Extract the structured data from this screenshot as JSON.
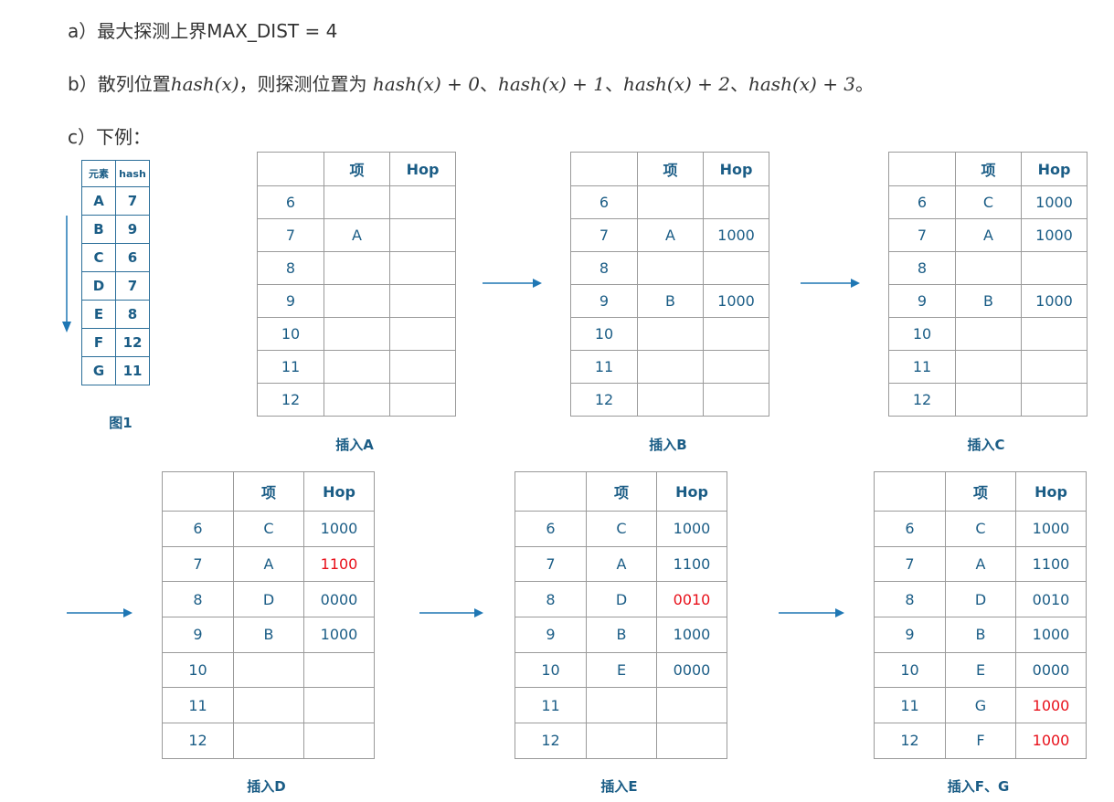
{
  "lines": {
    "a": {
      "prefix": "a）最大探测上界MAX_DIST = 4"
    },
    "b": {
      "prefix": "b）散列位置",
      "hash1": "hash(x)",
      "mid": "，则探测位置为 ",
      "p0": "hash(x) + 0",
      "sep1": "、",
      "p1": "hash(x) + 1",
      "sep2": "、",
      "p2": "hash(x) + 2",
      "sep3": "、",
      "p3": "hash(x) + 3",
      "end": "。"
    },
    "c": {
      "prefix": "c）下例："
    }
  },
  "figure1": {
    "headers": [
      "元素",
      "hash"
    ],
    "rows": [
      [
        "A",
        "7"
      ],
      [
        "B",
        "9"
      ],
      [
        "C",
        "6"
      ],
      [
        "D",
        "7"
      ],
      [
        "E",
        "8"
      ],
      [
        "F",
        "12"
      ],
      [
        "G",
        "11"
      ]
    ],
    "caption": "图1"
  },
  "table_headers": [
    "",
    "项",
    "Hop"
  ],
  "tables": [
    {
      "caption": "插入A",
      "rows": [
        {
          "i": "6",
          "item": "",
          "hop": ""
        },
        {
          "i": "7",
          "item": "A",
          "hop": ""
        },
        {
          "i": "8",
          "item": "",
          "hop": ""
        },
        {
          "i": "9",
          "item": "",
          "hop": ""
        },
        {
          "i": "10",
          "item": "",
          "hop": ""
        },
        {
          "i": "11",
          "item": "",
          "hop": ""
        },
        {
          "i": "12",
          "item": "",
          "hop": ""
        }
      ]
    },
    {
      "caption": "插入B",
      "rows": [
        {
          "i": "6",
          "item": "",
          "hop": ""
        },
        {
          "i": "7",
          "item": "A",
          "hop": "1000"
        },
        {
          "i": "8",
          "item": "",
          "hop": ""
        },
        {
          "i": "9",
          "item": "B",
          "hop": "1000"
        },
        {
          "i": "10",
          "item": "",
          "hop": ""
        },
        {
          "i": "11",
          "item": "",
          "hop": ""
        },
        {
          "i": "12",
          "item": "",
          "hop": ""
        }
      ]
    },
    {
      "caption": "插入C",
      "rows": [
        {
          "i": "6",
          "item": "C",
          "hop": "1000"
        },
        {
          "i": "7",
          "item": "A",
          "hop": "1000"
        },
        {
          "i": "8",
          "item": "",
          "hop": ""
        },
        {
          "i": "9",
          "item": "B",
          "hop": "1000"
        },
        {
          "i": "10",
          "item": "",
          "hop": ""
        },
        {
          "i": "11",
          "item": "",
          "hop": ""
        },
        {
          "i": "12",
          "item": "",
          "hop": ""
        }
      ]
    },
    {
      "caption": "插入D",
      "rows": [
        {
          "i": "6",
          "item": "C",
          "hop": "1000"
        },
        {
          "i": "7",
          "item": "A",
          "hop": "1100",
          "red": true
        },
        {
          "i": "8",
          "item": "D",
          "hop": "0000"
        },
        {
          "i": "9",
          "item": "B",
          "hop": "1000"
        },
        {
          "i": "10",
          "item": "",
          "hop": ""
        },
        {
          "i": "11",
          "item": "",
          "hop": ""
        },
        {
          "i": "12",
          "item": "",
          "hop": ""
        }
      ]
    },
    {
      "caption": "插入E",
      "rows": [
        {
          "i": "6",
          "item": "C",
          "hop": "1000"
        },
        {
          "i": "7",
          "item": "A",
          "hop": "1100"
        },
        {
          "i": "8",
          "item": "D",
          "hop": "0010",
          "red": true
        },
        {
          "i": "9",
          "item": "B",
          "hop": "1000"
        },
        {
          "i": "10",
          "item": "E",
          "hop": "0000"
        },
        {
          "i": "11",
          "item": "",
          "hop": ""
        },
        {
          "i": "12",
          "item": "",
          "hop": ""
        }
      ]
    },
    {
      "caption": "插入F、G",
      "rows": [
        {
          "i": "6",
          "item": "C",
          "hop": "1000"
        },
        {
          "i": "7",
          "item": "A",
          "hop": "1100"
        },
        {
          "i": "8",
          "item": "D",
          "hop": "0010"
        },
        {
          "i": "9",
          "item": "B",
          "hop": "1000"
        },
        {
          "i": "10",
          "item": "E",
          "hop": "0000"
        },
        {
          "i": "11",
          "item": "G",
          "hop": "1000",
          "red": true
        },
        {
          "i": "12",
          "item": "F",
          "hop": "1000",
          "red": true
        }
      ]
    }
  ],
  "colors": {
    "accent": "#1b5d86",
    "arrow": "#1f77b4",
    "highlight": "#e8101a",
    "border": "#9a9a9a"
  }
}
